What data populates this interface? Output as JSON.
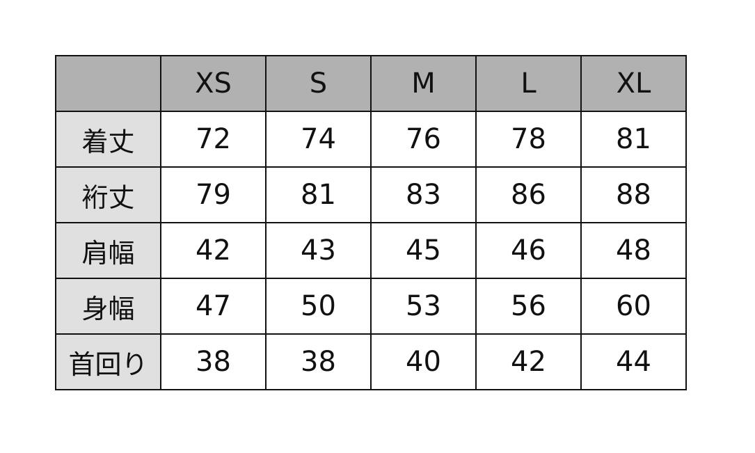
{
  "table": {
    "corner": "",
    "columns": [
      "XS",
      "S",
      "M",
      "L",
      "XL"
    ],
    "rows": [
      {
        "label": "着丈",
        "values": [
          "72",
          "74",
          "76",
          "78",
          "81"
        ]
      },
      {
        "label": "裄丈",
        "values": [
          "79",
          "81",
          "83",
          "86",
          "88"
        ]
      },
      {
        "label": "肩幅",
        "values": [
          "42",
          "43",
          "45",
          "46",
          "48"
        ]
      },
      {
        "label": "身幅",
        "values": [
          "47",
          "50",
          "53",
          "56",
          "60"
        ]
      },
      {
        "label": "首回り",
        "values": [
          "38",
          "38",
          "40",
          "42",
          "44"
        ]
      }
    ],
    "colors": {
      "header_bg": "#b1b1b1",
      "label_bg": "#e0e0e0",
      "border": "#111111"
    }
  }
}
